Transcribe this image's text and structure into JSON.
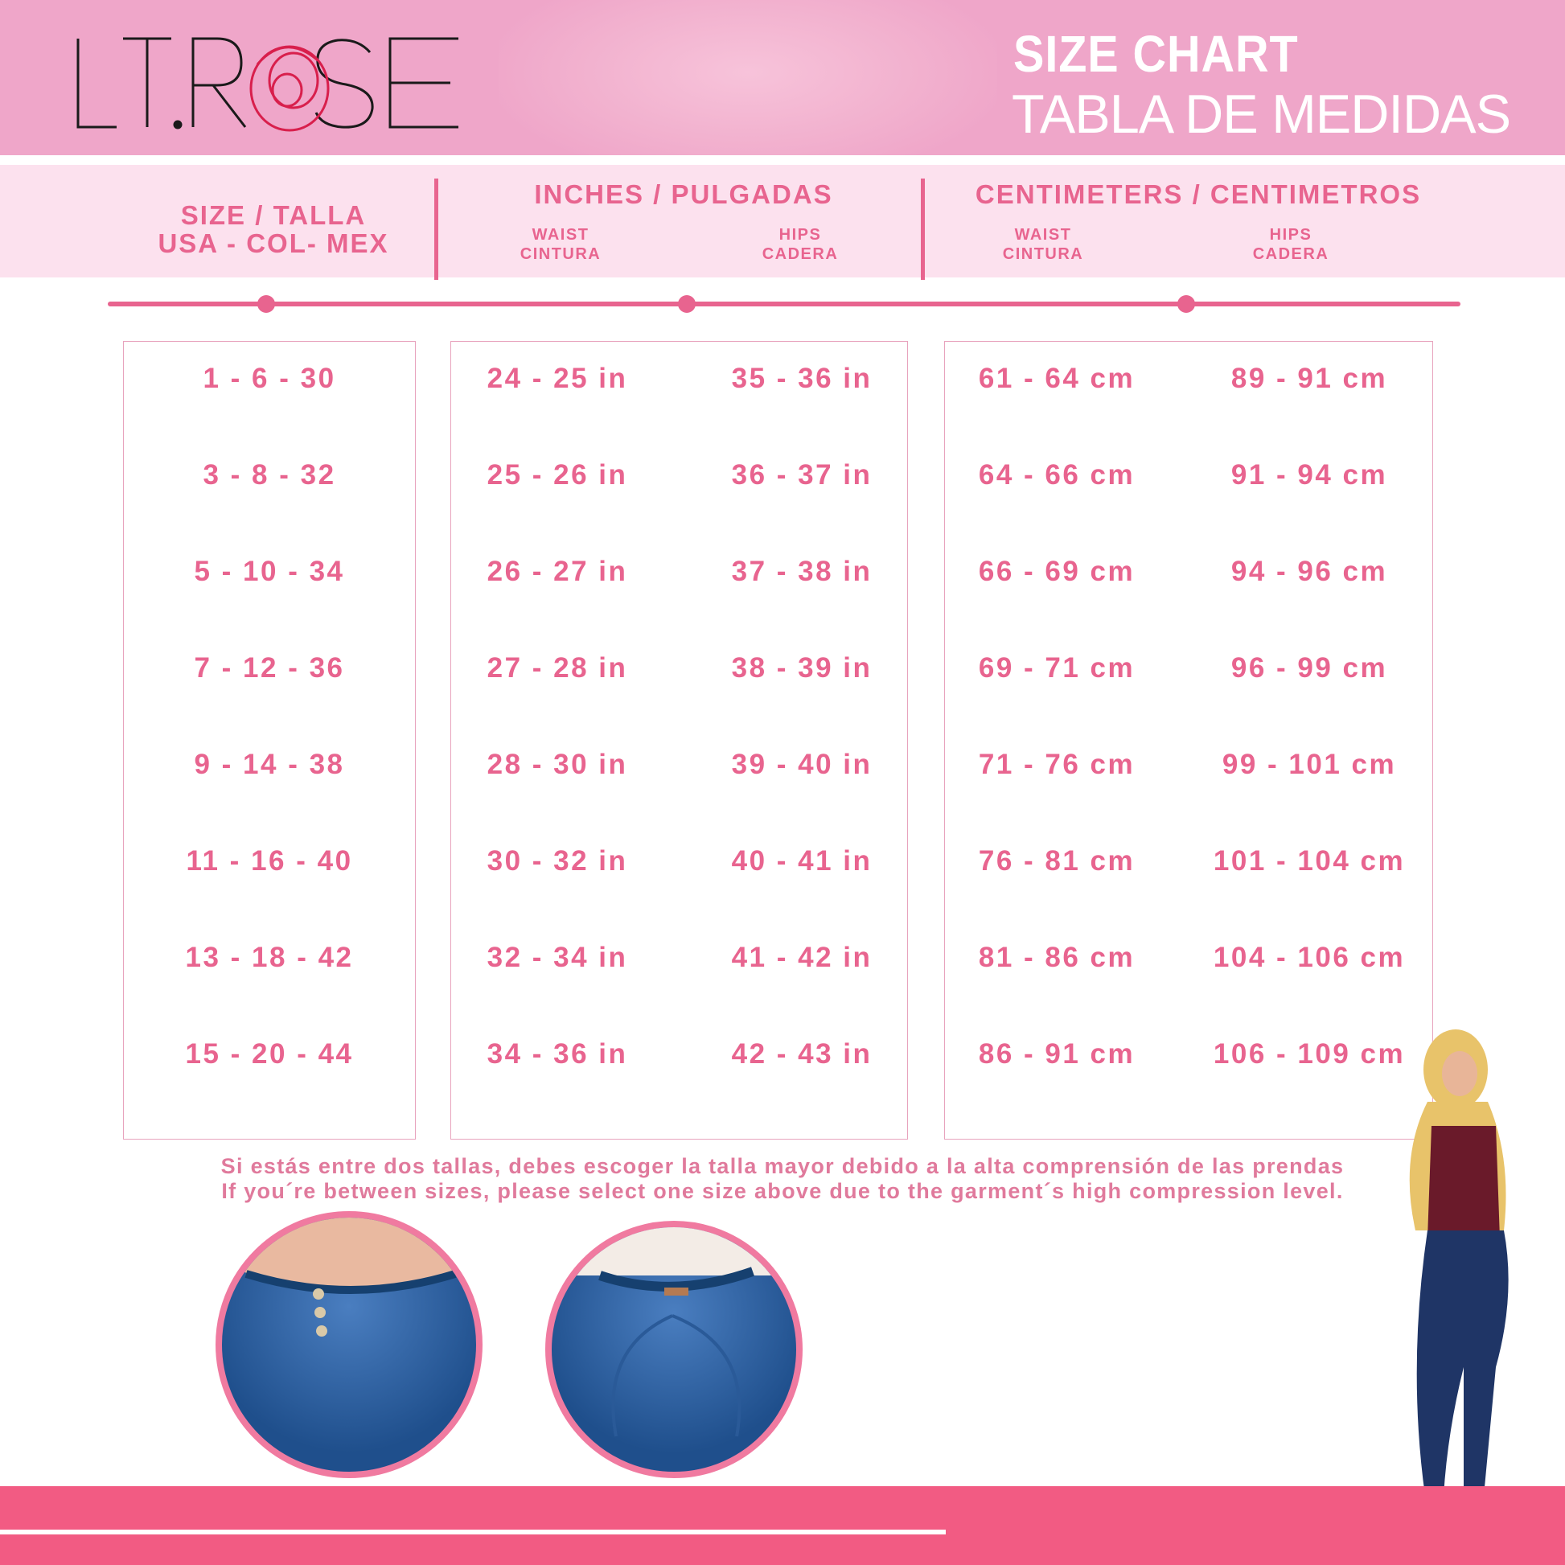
{
  "brand": {
    "logo": "LT.ROSE"
  },
  "banner": {
    "title": "SIZE CHART",
    "subtitle": "TABLA DE MEDIDAS"
  },
  "headers": {
    "size": {
      "line1": "SIZE / TALLA",
      "line2": "USA - COL- MEX"
    },
    "inches": {
      "title": "INCHES / PULGADAS",
      "waist": [
        "WAIST",
        "CINTURA"
      ],
      "hips": [
        "HIPS",
        "CADERA"
      ]
    },
    "cm": {
      "title": "CENTIMETERS / CENTIMETROS",
      "waist": [
        "WAIST",
        "CINTURA"
      ],
      "hips": [
        "HIPS",
        "CADERA"
      ]
    }
  },
  "colors": {
    "accent": "#e8648f",
    "banner": "#efa6c9",
    "header_row": "#fce1ee",
    "bottom_bar": "#f25b83"
  },
  "rows": [
    {
      "size": "1 - 6 - 30",
      "in_waist": "24 - 25 in",
      "in_hips": "35 - 36 in",
      "cm_waist": "61 - 64 cm",
      "cm_hips": "89 - 91 cm"
    },
    {
      "size": "3 - 8 - 32",
      "in_waist": "25 - 26 in",
      "in_hips": "36 - 37 in",
      "cm_waist": "64 - 66 cm",
      "cm_hips": "91 - 94 cm"
    },
    {
      "size": "5 - 10 - 34",
      "in_waist": "26 - 27 in",
      "in_hips": "37 - 38 in",
      "cm_waist": "66 - 69 cm",
      "cm_hips": "94 - 96 cm"
    },
    {
      "size": "7 - 12 - 36",
      "in_waist": "27 - 28 in",
      "in_hips": "38 - 39 in",
      "cm_waist": "69 - 71 cm",
      "cm_hips": "96 - 99 cm"
    },
    {
      "size": "9 - 14 - 38",
      "in_waist": "28 - 30 in",
      "in_hips": "39 - 40 in",
      "cm_waist": "71 - 76 cm",
      "cm_hips": "99 - 101 cm"
    },
    {
      "size": "11 - 16 - 40",
      "in_waist": "30 - 32 in",
      "in_hips": "40 - 41 in",
      "cm_waist": "76 - 81 cm",
      "cm_hips": "101 - 104 cm"
    },
    {
      "size": "13 - 18 - 42",
      "in_waist": "32 - 34 in",
      "in_hips": "41 - 42 in",
      "cm_waist": "81 - 86 cm",
      "cm_hips": "104 - 106 cm"
    },
    {
      "size": "15 - 20 - 44",
      "in_waist": "34 - 36 in",
      "in_hips": "42 - 43 in",
      "cm_waist": "86 - 91 cm",
      "cm_hips": "106 - 109 cm"
    }
  ],
  "notes": {
    "es": "Si estás entre dos tallas, debes escoger la talla mayor debido a la alta comprensión de las prendas",
    "en": "If you´re between sizes, please select one size above due to the garment´s high compression level."
  }
}
